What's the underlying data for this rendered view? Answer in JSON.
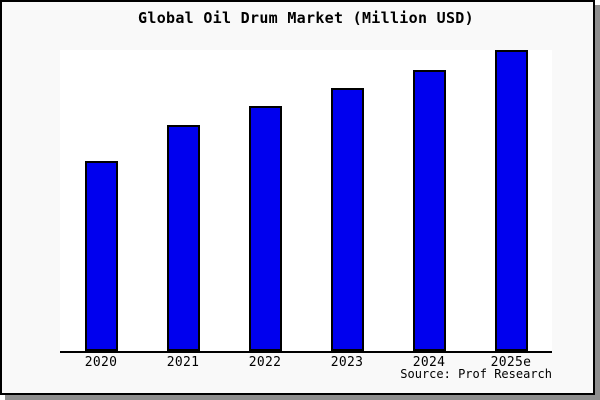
{
  "figure": {
    "title": "Global Oil Drum Market (Million USD)",
    "source_credit": "Source: Prof Research"
  },
  "chart_data": {
    "type": "bar",
    "title": "Global Oil Drum Market (Million USD)",
    "categories": [
      "2020",
      "2021",
      "2022",
      "2023",
      "2024",
      "2025e"
    ],
    "values": [
      63,
      75,
      81.5,
      87.5,
      93.5,
      100
    ],
    "ylim": [
      0,
      100
    ],
    "xlabel": "",
    "ylabel": "",
    "y_axis_shown": false,
    "grid": false,
    "legend": false,
    "source": "Source: Prof Research",
    "colors": {
      "bar_fill": "#0000ee",
      "bar_edge": "#000000",
      "axis_line": "#000000",
      "figure_background": "#f9f9f9",
      "plot_background": "#ffffff",
      "figure_border": "#000000",
      "shadow": "#8e8e8e",
      "text": "#000000"
    }
  }
}
